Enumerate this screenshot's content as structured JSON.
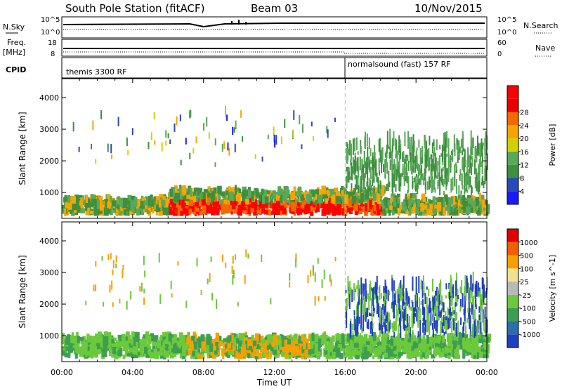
{
  "header": {
    "station": "South Pole Station (fitACF)",
    "beam": "Beam 03",
    "date": "10/Nov/2015"
  },
  "status_panel": {
    "left_labels": {
      "nsky": "N.Sky",
      "freq": "Freq.",
      "freq_unit": "[MHz]",
      "cpid": "CPID"
    },
    "right_labels": {
      "nsearch": "N.Search",
      "nave": "Nave"
    },
    "nsky_ticks": [
      "10^5",
      "10^0"
    ],
    "nsearch_ticks": [
      "10^5",
      "10^0"
    ],
    "freq_ticks": [
      "18",
      "8"
    ],
    "nave_ticks": [
      "60",
      "0"
    ],
    "cpid_segments": [
      {
        "label": "themis 3300 RF",
        "start_hour": 0,
        "end_hour": 16
      },
      {
        "label": "normalsound (fast) 157 RF",
        "start_hour": 16,
        "end_hour": 24
      }
    ]
  },
  "chart_data": [
    {
      "type": "heatmap",
      "panel": "power",
      "ylabel": "Slant Range [km]",
      "yticks": [
        1000,
        2000,
        3000,
        4000
      ],
      "ylim": [
        180,
        4600
      ],
      "xlim": [
        0,
        24
      ],
      "colorbar": {
        "label": "Power [dB]",
        "ticks": [
          "4",
          "8",
          "12",
          "16",
          "20",
          "24",
          "28"
        ],
        "colors": [
          "#1a1aff",
          "#2a49b8",
          "#3e8f3e",
          "#5aa85a",
          "#cfd200",
          "#f5a500",
          "#f06a00",
          "#e80000",
          "#ff0000"
        ]
      },
      "marker_hour": 16
    },
    {
      "type": "heatmap",
      "panel": "velocity",
      "ylabel": "Slant Range [km]",
      "yticks": [
        1000,
        2000,
        3000,
        4000
      ],
      "ylim": [
        180,
        4600
      ],
      "xlim": [
        0,
        24
      ],
      "xlabel": "Time UT",
      "xticks": [
        "00:00",
        "04:00",
        "08:00",
        "12:00",
        "16:00",
        "20:00",
        "00:00"
      ],
      "colorbar": {
        "label": "Velocity [m s^-1]",
        "ticks": [
          "1000",
          "500",
          "100",
          "25",
          "-25",
          "-100",
          "-500",
          "-1000"
        ],
        "colors": [
          "#1f3fbf",
          "#2a6fa8",
          "#3c9e50",
          "#6cc93c",
          "#b9b9b9",
          "#f0e090",
          "#f5a000",
          "#f06000",
          "#e00000"
        ]
      },
      "marker_hour": 16
    }
  ]
}
